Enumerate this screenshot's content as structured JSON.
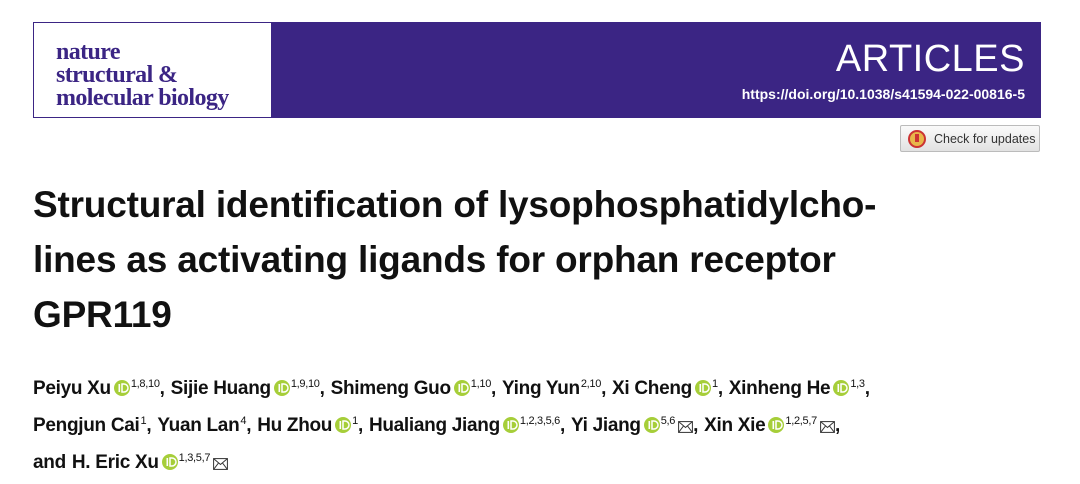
{
  "header": {
    "journal_lines": [
      "nature",
      "structural &",
      "molecular biology"
    ],
    "section": "ARTICLES",
    "doi": "https://doi.org/10.1038/s41594-022-00816-5"
  },
  "check_updates": "Check for updates",
  "title_lines": [
    "Structural identification of lysophosphatidylcho-",
    "lines as activating ligands for orphan receptor",
    "GPR119"
  ],
  "authors": {
    "separator": ",",
    "conjunction": "and",
    "lines": [
      [
        {
          "name": "Peiyu Xu",
          "affiliations": "1,8,10",
          "orcid": true,
          "corresponding": false
        },
        {
          "name": "Sijie Huang",
          "affiliations": "1,9,10",
          "orcid": true,
          "corresponding": false
        },
        {
          "name": "Shimeng Guo",
          "affiliations": "1,10",
          "orcid": true,
          "corresponding": false
        },
        {
          "name": "Ying Yun",
          "affiliations": "2,10",
          "orcid": false,
          "corresponding": false
        },
        {
          "name": "Xi Cheng",
          "affiliations": "1",
          "orcid": true,
          "corresponding": false
        },
        {
          "name": "Xinheng He",
          "affiliations": "1,3",
          "orcid": true,
          "corresponding": false
        }
      ],
      [
        {
          "name": "Pengjun Cai",
          "affiliations": "1",
          "orcid": false,
          "corresponding": false
        },
        {
          "name": "Yuan Lan",
          "affiliations": "4",
          "orcid": false,
          "corresponding": false
        },
        {
          "name": "Hu Zhou",
          "affiliations": "1",
          "orcid": true,
          "corresponding": false
        },
        {
          "name": "Hualiang Jiang",
          "affiliations": "1,2,3,5,6",
          "orcid": true,
          "corresponding": false
        },
        {
          "name": "Yi Jiang",
          "affiliations": "5,6",
          "orcid": true,
          "corresponding": true
        },
        {
          "name": "Xin Xie",
          "affiliations": "1,2,5,7",
          "orcid": true,
          "corresponding": true
        }
      ],
      [
        {
          "name": "H. Eric Xu",
          "affiliations": "1,3,5,7",
          "orcid": true,
          "corresponding": true
        }
      ]
    ]
  }
}
